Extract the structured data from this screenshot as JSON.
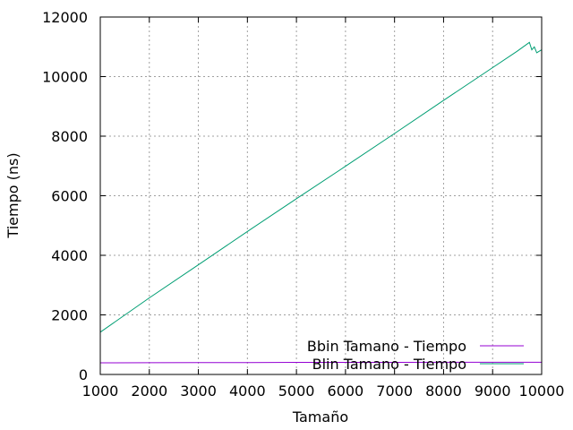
{
  "chart_data": {
    "type": "line",
    "title": "",
    "xlabel": "Tamaño",
    "ylabel": "Tiempo (ns)",
    "xlim": [
      1000,
      10000
    ],
    "ylim": [
      0,
      12000
    ],
    "xticks": [
      1000,
      2000,
      3000,
      4000,
      5000,
      6000,
      7000,
      8000,
      9000,
      10000
    ],
    "yticks": [
      0,
      2000,
      4000,
      6000,
      8000,
      10000,
      12000
    ],
    "grid": true,
    "legend_position": "bottom-right",
    "series": [
      {
        "name": "Bbin Tamano - Tiempo",
        "color": "#9400d3",
        "x": [
          1000,
          2000,
          3000,
          4000,
          5000,
          6000,
          7000,
          8000,
          9000,
          10000
        ],
        "y": [
          390,
          395,
          400,
          400,
          405,
          405,
          405,
          410,
          410,
          410
        ]
      },
      {
        "name": "Blin Tamano - Tiempo",
        "color": "#009e73",
        "x": [
          1000,
          2000,
          3000,
          4000,
          5000,
          6000,
          7000,
          8000,
          9000,
          9500,
          9750,
          9800,
          9850,
          9900,
          9950,
          10000
        ],
        "y": [
          1420,
          2570,
          3680,
          4800,
          5900,
          6990,
          8090,
          9200,
          10300,
          10850,
          11150,
          10900,
          11000,
          10800,
          10850,
          10900
        ]
      }
    ]
  }
}
